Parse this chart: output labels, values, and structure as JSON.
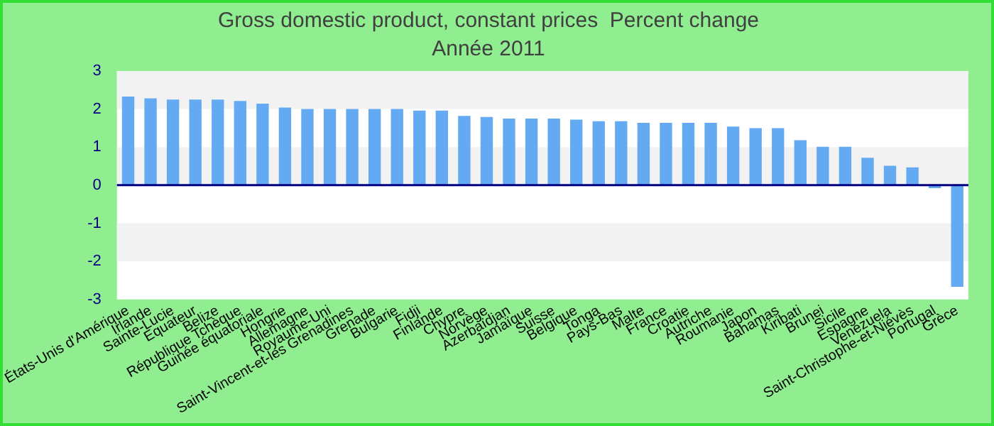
{
  "chart_data": {
    "type": "bar",
    "title": "Gross domestic product, constant prices  Percent change",
    "subtitle": "Année 2011",
    "categories": [
      "États-Unis d'Amérique",
      "Irlande",
      "Sainte-Lucie",
      "Equateur",
      "Belize",
      "République Tchèque",
      "Guinée équatoriale",
      "Hongrie",
      "Allemagne",
      "Royaume-Uni",
      "Saint-Vincent-et-les Grenadines",
      "Grenade",
      "Bulgarie",
      "Fidji",
      "Finlande",
      "Chypre",
      "Norvège",
      "Azerbaïdjan",
      "Jamaïque",
      "Suisse",
      "Belgique",
      "Tonga",
      "Pays-Bas",
      "Malte",
      "France",
      "Croatie",
      "Autriche",
      "Roumanie",
      "Japon",
      "Bahamas",
      "Kiribati",
      "Brunei",
      "Sicile",
      "Espagne",
      "Venezuela",
      "Saint-Christophe-et-Niévès",
      "Portugal",
      "Grèce"
    ],
    "values": [
      2.33,
      2.28,
      2.25,
      2.25,
      2.25,
      2.21,
      2.14,
      2.04,
      2.0,
      2.0,
      2.0,
      2.0,
      2.0,
      1.96,
      1.96,
      1.82,
      1.79,
      1.75,
      1.75,
      1.75,
      1.72,
      1.68,
      1.68,
      1.64,
      1.64,
      1.64,
      1.64,
      1.54,
      1.5,
      1.5,
      1.18,
      1.01,
      1.01,
      0.72,
      0.51,
      0.47,
      -0.08,
      -2.67
    ],
    "color": "#63aaf2",
    "ylim": [
      -3,
      3
    ],
    "yticks": [
      -3,
      -2,
      -1,
      0,
      1,
      2,
      3
    ],
    "legend": false,
    "ref_lines": [
      {
        "axis": "y",
        "value": 0,
        "color": "#000080"
      }
    ],
    "bands": [
      {
        "axis": "y",
        "from": 2,
        "to": 3,
        "color": "#f2f2f2"
      },
      {
        "axis": "y",
        "from": 0,
        "to": 1,
        "color": "#f2f2f2"
      },
      {
        "axis": "y",
        "from": -2,
        "to": -1,
        "color": "#f2f2f2"
      }
    ]
  }
}
